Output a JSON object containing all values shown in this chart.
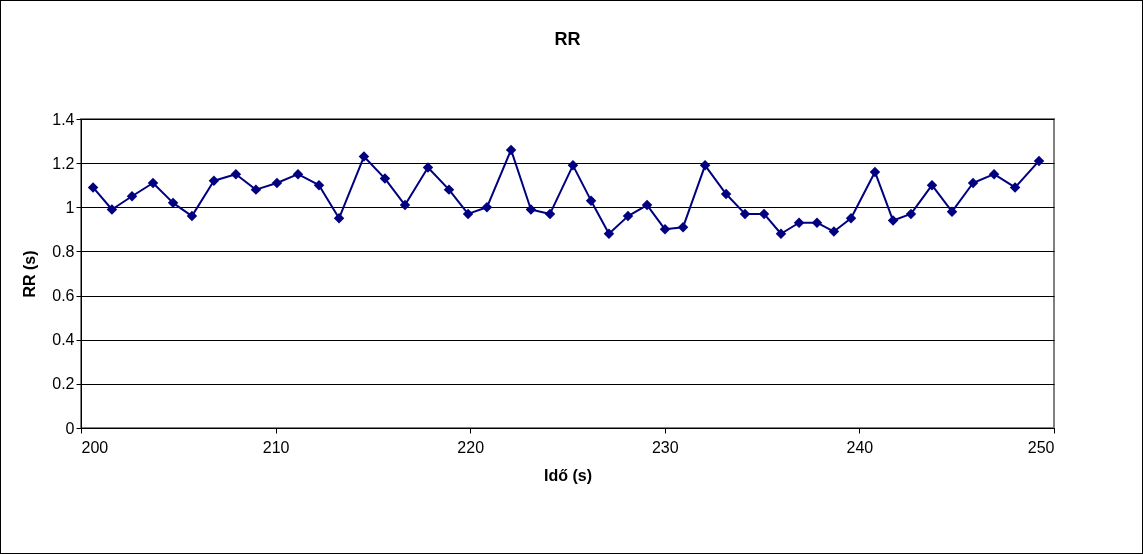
{
  "chart_data": {
    "type": "line",
    "title": "RR",
    "xlabel": "Idő (s)",
    "ylabel": "RR (s)",
    "x": [
      200.62,
      201.59,
      202.62,
      203.7,
      204.73,
      205.7,
      206.83,
      207.96,
      208.99,
      210.07,
      211.15,
      212.23,
      213.26,
      214.54,
      215.62,
      216.65,
      217.83,
      218.91,
      219.89,
      220.86,
      222.1,
      223.12,
      224.1,
      225.28,
      226.21,
      227.13,
      228.11,
      229.09,
      230.01,
      230.94,
      232.07,
      233.15,
      234.12,
      235.1,
      235.97,
      236.9,
      237.82,
      238.69,
      239.57,
      240.8,
      241.73,
      242.65,
      243.73,
      244.76,
      245.84,
      246.92,
      248.0,
      249.23
    ],
    "series": [
      {
        "color": "#000080",
        "values": [
          1.09,
          0.99,
          1.05,
          1.11,
          1.02,
          0.96,
          1.12,
          1.15,
          1.08,
          1.11,
          1.15,
          1.1,
          0.95,
          1.23,
          1.13,
          1.01,
          1.18,
          1.08,
          0.97,
          1.0,
          1.26,
          0.99,
          0.97,
          1.19,
          1.03,
          0.88,
          0.96,
          1.01,
          0.9,
          0.91,
          1.19,
          1.06,
          0.97,
          0.97,
          0.88,
          0.93,
          0.93,
          0.89,
          0.95,
          1.16,
          0.94,
          0.97,
          1.1,
          0.98,
          1.11,
          1.15,
          1.09,
          1.21
        ]
      }
    ],
    "xlim": [
      200,
      250
    ],
    "xticks": [
      200,
      210,
      220,
      230,
      240,
      250
    ],
    "ylim": [
      0,
      1.4
    ],
    "yticks": [
      0,
      0.2,
      0.4,
      0.6,
      0.8,
      1,
      1.2,
      1.4
    ],
    "grid": "y",
    "marker": "diamond",
    "line_style": "solid"
  }
}
